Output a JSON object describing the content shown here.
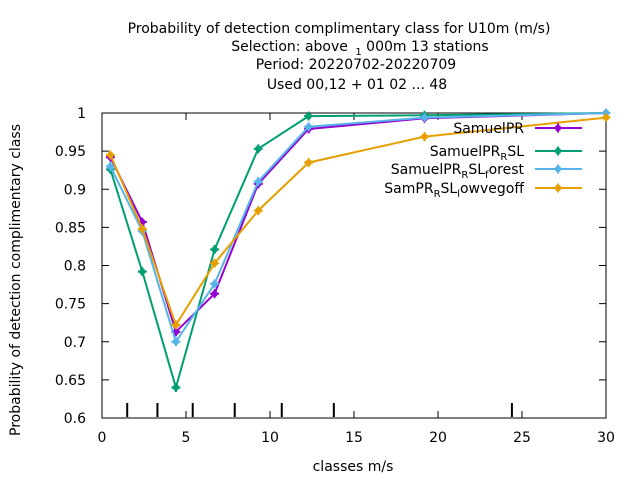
{
  "chart_data": {
    "type": "line",
    "title_lines": [
      "Probability of detection complimentary class  for U10m (m/s)",
      "Selection: above",
      "Period: 20220702-20220709",
      "Used  00,12  + 01 02 ... 48"
    ],
    "title_sel": {
      "sub": "1",
      "rest": "000m     13 stations"
    },
    "xlabel": "classes m/s",
    "ylabel": "Probability of detection complimentary class",
    "xlim": [
      0,
      30
    ],
    "ylim": [
      0.6,
      1.0
    ],
    "xticks": [
      0,
      5,
      10,
      15,
      20,
      25,
      30
    ],
    "yticks": [
      0.6,
      0.65,
      0.7,
      0.75,
      0.8,
      0.85,
      0.9,
      0.95,
      1.0
    ],
    "ytick_labels": [
      "0.6",
      "0.65",
      "0.7",
      "0.75",
      "0.8",
      "0.85",
      "0.9",
      "0.95",
      "1"
    ],
    "class_bounds": [
      1.5,
      3.3,
      5.4,
      7.9,
      10.7,
      13.8,
      24.4
    ],
    "legend_position": "top-right",
    "series": [
      {
        "name": "SamuelPR",
        "legend": {
          "base": "SamuelPR"
        },
        "color": "#9400d3",
        "x": [
          0.5,
          2.4,
          4.4,
          6.7,
          9.3,
          12.3,
          19.2,
          30.0
        ],
        "y": [
          0.942,
          0.857,
          0.713,
          0.763,
          0.907,
          0.979,
          0.993,
          1.0
        ]
      },
      {
        "name": "SamuelPR_RSL",
        "legend": {
          "base": "SamuelPR",
          "sub": "R",
          "rest": "SL"
        },
        "color": "#009e73",
        "x": [
          0.5,
          2.4,
          4.4,
          6.7,
          9.3,
          12.3,
          19.2,
          30.0
        ],
        "y": [
          0.926,
          0.792,
          0.64,
          0.821,
          0.953,
          0.996,
          0.997,
          1.0
        ]
      },
      {
        "name": "SamuelPR_RSL_forest",
        "legend": {
          "base": "SamuelPR",
          "sub": "R",
          "rest": "SL",
          "sub2": "f",
          "rest2": "orest"
        },
        "color": "#56b4e9",
        "x": [
          0.5,
          2.4,
          4.4,
          6.7,
          9.3,
          12.3,
          19.2,
          30.0
        ],
        "y": [
          0.93,
          0.845,
          0.7,
          0.776,
          0.91,
          0.982,
          0.994,
          1.0
        ]
      },
      {
        "name": "SamPR_RSL_lowvegoff",
        "legend": {
          "base": "SamPR",
          "sub": "R",
          "rest": "SL",
          "sub2": "l",
          "rest2": "owvegoff"
        },
        "color": "#e69f00",
        "x": [
          0.5,
          2.4,
          4.4,
          6.7,
          9.3,
          12.3,
          19.2,
          30.0
        ],
        "y": [
          0.945,
          0.848,
          0.722,
          0.803,
          0.872,
          0.935,
          0.969,
          0.994
        ]
      }
    ]
  }
}
